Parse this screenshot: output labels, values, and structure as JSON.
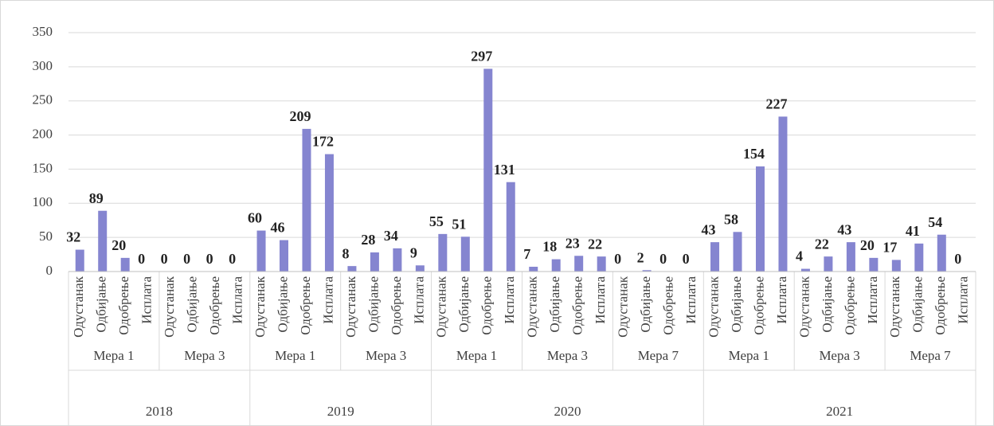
{
  "chart_data": {
    "type": "bar",
    "color": "#8585d0",
    "ylim": [
      0,
      350
    ],
    "yticks": [
      0,
      50,
      100,
      150,
      200,
      250,
      300,
      350
    ],
    "grid": true,
    "years": [
      {
        "name": "2018",
        "measures": [
          {
            "name": "Мера 1",
            "categories": [
              "Одустанак",
              "Одбијање",
              "Одобрење",
              "Исплата"
            ],
            "values": [
              32,
              89,
              20,
              0
            ]
          },
          {
            "name": "Мера 3",
            "categories": [
              "Одустанак",
              "Одбијање",
              "Одобрење",
              "Исплата"
            ],
            "values": [
              0,
              0,
              0,
              0
            ]
          }
        ]
      },
      {
        "name": "2019",
        "measures": [
          {
            "name": "Мера 1",
            "categories": [
              "Одустанак",
              "Одбијање",
              "Одобрење",
              "Исплата"
            ],
            "values": [
              60,
              46,
              209,
              172
            ]
          },
          {
            "name": "Мера 3",
            "categories": [
              "Одустанак",
              "Одбијање",
              "Одобрење",
              "Исплата"
            ],
            "values": [
              8,
              28,
              34,
              9
            ]
          }
        ]
      },
      {
        "name": "2020",
        "measures": [
          {
            "name": "Мера 1",
            "categories": [
              "Одустанак",
              "Одбијање",
              "Одобрење",
              "Исплата"
            ],
            "values": [
              55,
              51,
              297,
              131
            ]
          },
          {
            "name": "Мера 3",
            "categories": [
              "Одустанак",
              "Одбијање",
              "Одобрење",
              "Исплата"
            ],
            "values": [
              7,
              18,
              23,
              22
            ]
          },
          {
            "name": "Мера 7",
            "categories": [
              "Одустанак",
              "Одбијање",
              "Одобрење",
              "Исплата"
            ],
            "values": [
              0,
              2,
              0,
              0
            ]
          }
        ]
      },
      {
        "name": "2021",
        "measures": [
          {
            "name": "Мера 1",
            "categories": [
              "Одустанак",
              "Одбијање",
              "Одобрење",
              "Исплата"
            ],
            "values": [
              43,
              58,
              154,
              227
            ]
          },
          {
            "name": "Мера 3",
            "categories": [
              "Одустанак",
              "Одбијање",
              "Одобрење",
              "Исплата"
            ],
            "values": [
              4,
              22,
              43,
              20
            ]
          },
          {
            "name": "Мера 7",
            "categories": [
              "Одустанак",
              "Одбијање",
              "Одобрење",
              "Исплата"
            ],
            "values": [
              17,
              41,
              54,
              0
            ]
          }
        ]
      }
    ]
  }
}
